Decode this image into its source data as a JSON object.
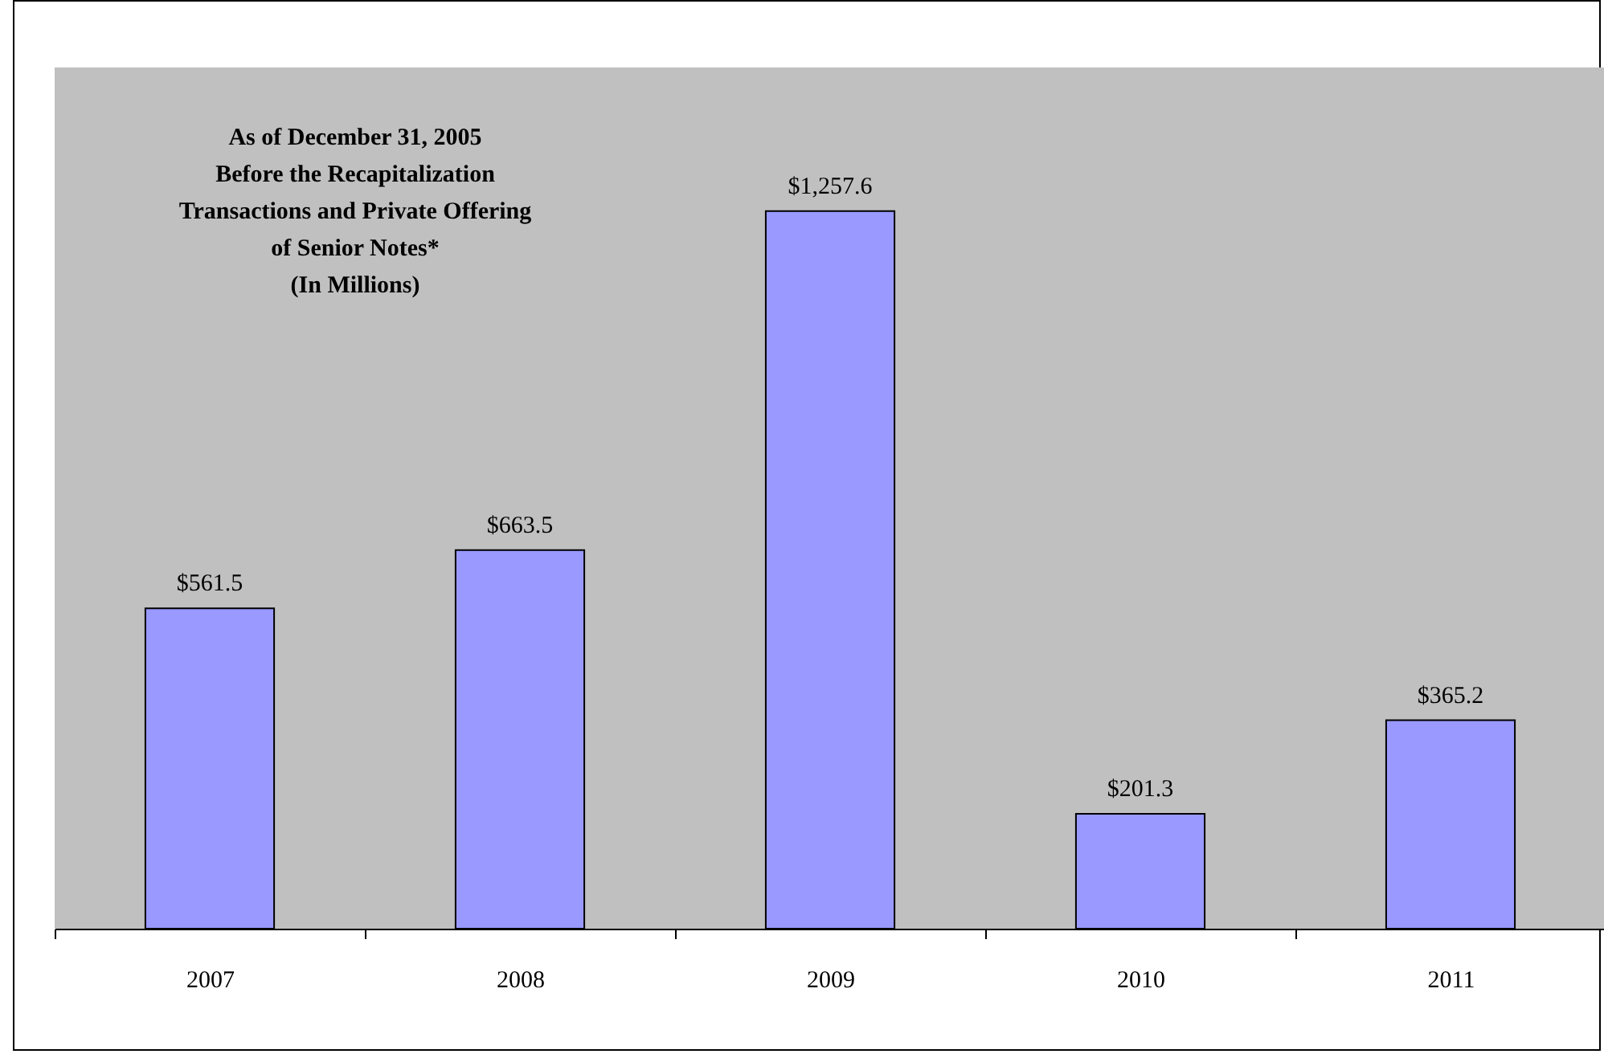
{
  "chart_data": {
    "type": "bar",
    "title": "As of December 31, 2005\nBefore the Recapitalization\nTransactions and Private Offering\nof Senior Notes*\n(In Millions)",
    "categories": [
      "2007",
      "2008",
      "2009",
      "2010",
      "2011"
    ],
    "values": [
      561.5,
      663.5,
      1257.6,
      201.3,
      365.2
    ],
    "value_labels": [
      "$561.5",
      "$663.5",
      "$1,257.6",
      "$201.3",
      "$365.2"
    ],
    "color": "#9999ff",
    "grid": false
  }
}
